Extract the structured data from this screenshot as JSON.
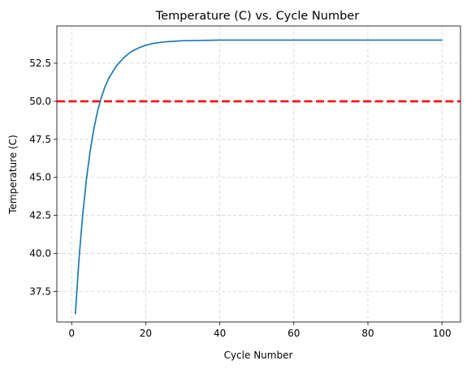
{
  "chart_data": {
    "type": "line",
    "title": "Temperature (C) vs. Cycle Number",
    "xlabel": "Cycle Number",
    "ylabel": "Temperature (C)",
    "xlim": [
      -4.0,
      105.0
    ],
    "ylim": [
      35.5,
      54.95
    ],
    "x_ticks": [
      0,
      20,
      40,
      60,
      80,
      100
    ],
    "x_tick_labels": [
      "0",
      "20",
      "40",
      "60",
      "80",
      "100"
    ],
    "y_ticks": [
      37.5,
      40.0,
      42.5,
      45.0,
      47.5,
      50.0,
      52.5
    ],
    "y_tick_labels": [
      "37.5",
      "40.0",
      "42.5",
      "45.0",
      "47.5",
      "50.0",
      "52.5"
    ],
    "grid": true,
    "series": [
      {
        "color": "#1f77b4",
        "x": [
          1,
          2,
          3,
          4,
          5,
          6,
          7,
          8,
          9,
          10,
          12,
          14,
          16,
          18,
          20,
          22,
          25,
          28,
          30,
          35,
          40,
          50,
          60,
          70,
          80,
          90,
          100
        ],
        "values": [
          36.05,
          39.7,
          42.6,
          44.9,
          46.75,
          48.2,
          49.35,
          50.25,
          50.95,
          51.5,
          52.3,
          52.85,
          53.25,
          53.5,
          53.68,
          53.8,
          53.9,
          53.95,
          53.98,
          54.0,
          54.02,
          54.02,
          54.02,
          54.02,
          54.02,
          54.02,
          54.02
        ]
      }
    ],
    "reference_lines": [
      {
        "orientation": "horizontal",
        "value": 50.0,
        "color": "#ff0000",
        "style": "dashed"
      }
    ]
  }
}
